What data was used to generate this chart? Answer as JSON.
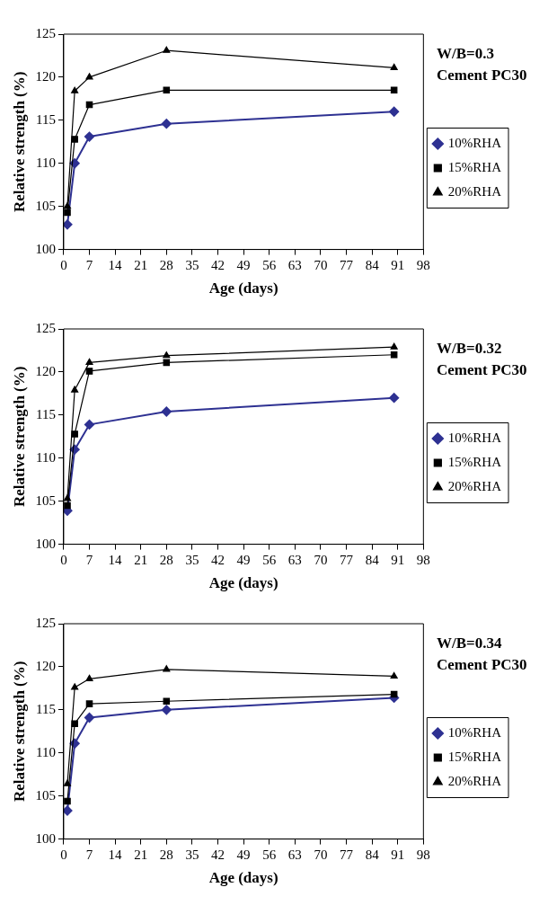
{
  "chart_data": [
    {
      "type": "line",
      "title": "W/B=0.3",
      "subtitle": "Cement PC30",
      "xlabel": "Age (days)",
      "ylabel": "Relative strength (%)",
      "xlim": [
        0,
        98
      ],
      "xticks": [
        0,
        7,
        14,
        21,
        28,
        35,
        42,
        49,
        56,
        63,
        70,
        77,
        84,
        91,
        98
      ],
      "ylim": [
        100,
        125
      ],
      "yticks": [
        100,
        105,
        110,
        115,
        120,
        125
      ],
      "legend": "right",
      "x": [
        1,
        3,
        7,
        28,
        90
      ],
      "series": [
        {
          "name": "10%RHA",
          "color": "#2e3192",
          "marker": "diamond",
          "values": [
            102.9,
            110.0,
            113.1,
            114.6,
            116.0
          ]
        },
        {
          "name": "15%RHA",
          "color": "#000000",
          "marker": "square",
          "values": [
            104.3,
            112.8,
            116.8,
            118.5,
            118.5
          ]
        },
        {
          "name": "20%RHA",
          "color": "#000000",
          "marker": "triangle",
          "values": [
            105.0,
            118.4,
            120.0,
            123.1,
            121.1
          ]
        }
      ]
    },
    {
      "type": "line",
      "title": "W/B=0.32",
      "subtitle": "Cement PC30",
      "xlabel": "Age (days)",
      "ylabel": "Relative strength (%)",
      "xlim": [
        0,
        98
      ],
      "xticks": [
        0,
        7,
        14,
        21,
        28,
        35,
        42,
        49,
        56,
        63,
        70,
        77,
        84,
        91,
        98
      ],
      "ylim": [
        100,
        125
      ],
      "yticks": [
        100,
        105,
        110,
        115,
        120,
        125
      ],
      "legend": "right",
      "x": [
        1,
        3,
        7,
        28,
        90
      ],
      "series": [
        {
          "name": "10%RHA",
          "color": "#2e3192",
          "marker": "diamond",
          "values": [
            103.9,
            111.0,
            113.9,
            115.4,
            117.0
          ]
        },
        {
          "name": "15%RHA",
          "color": "#000000",
          "marker": "square",
          "values": [
            104.5,
            112.8,
            120.1,
            121.1,
            122.0
          ]
        },
        {
          "name": "20%RHA",
          "color": "#000000",
          "marker": "triangle",
          "values": [
            105.3,
            117.9,
            121.1,
            121.9,
            122.9
          ]
        }
      ]
    },
    {
      "type": "line",
      "title": "W/B=0.34",
      "subtitle": "Cement PC30",
      "xlabel": "Age (days)",
      "ylabel": "Relative strength (%)",
      "xlim": [
        0,
        98
      ],
      "xticks": [
        0,
        7,
        14,
        21,
        28,
        35,
        42,
        49,
        56,
        63,
        70,
        77,
        84,
        91,
        98
      ],
      "ylim": [
        100,
        125
      ],
      "yticks": [
        100,
        105,
        110,
        115,
        120,
        125
      ],
      "legend": "right",
      "x": [
        1,
        3,
        7,
        28,
        90
      ],
      "series": [
        {
          "name": "10%RHA",
          "color": "#2e3192",
          "marker": "diamond",
          "values": [
            103.3,
            111.1,
            114.1,
            115.0,
            116.4
          ]
        },
        {
          "name": "15%RHA",
          "color": "#000000",
          "marker": "square",
          "values": [
            104.4,
            113.4,
            115.7,
            116.0,
            116.8
          ]
        },
        {
          "name": "20%RHA",
          "color": "#000000",
          "marker": "triangle",
          "values": [
            106.4,
            117.6,
            118.6,
            119.7,
            118.9
          ]
        }
      ]
    }
  ]
}
